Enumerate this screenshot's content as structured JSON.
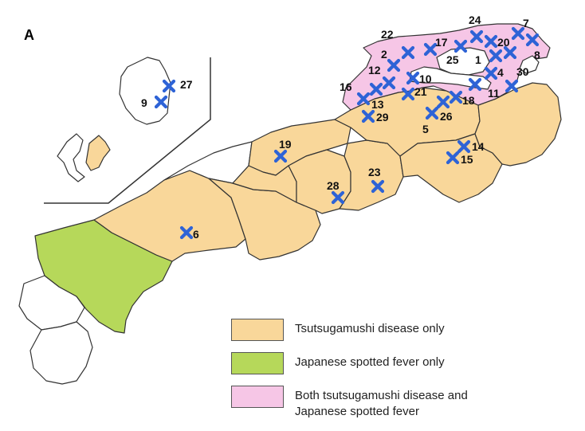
{
  "panel_label": "A",
  "colors": {
    "tsutsugamushi_only": "#f9d79a",
    "spotted_fever_only": "#b6d85a",
    "both": "#f6c6e6",
    "none": "#ffffff",
    "marker": "#2e63d6"
  },
  "legend": [
    {
      "key": "tsutsugamushi_only",
      "label": "Tsutsugamushi disease only"
    },
    {
      "key": "spotted_fever_only",
      "label": "Japanese spotted fever only"
    },
    {
      "key": "both",
      "label_lines": [
        "Both tsutsugamushi disease and",
        "Japanese spotted fever"
      ]
    }
  ],
  "sites": [
    "1",
    "2",
    "4",
    "5",
    "6",
    "7",
    "8",
    "9",
    "10",
    "11",
    "12",
    "13",
    "14",
    "15",
    "16",
    "17",
    "18",
    "19",
    "20",
    "21",
    "22",
    "23",
    "24",
    "25",
    "26",
    "27",
    "28",
    "29",
    "30"
  ],
  "marker_icon": "x-marker-icon"
}
